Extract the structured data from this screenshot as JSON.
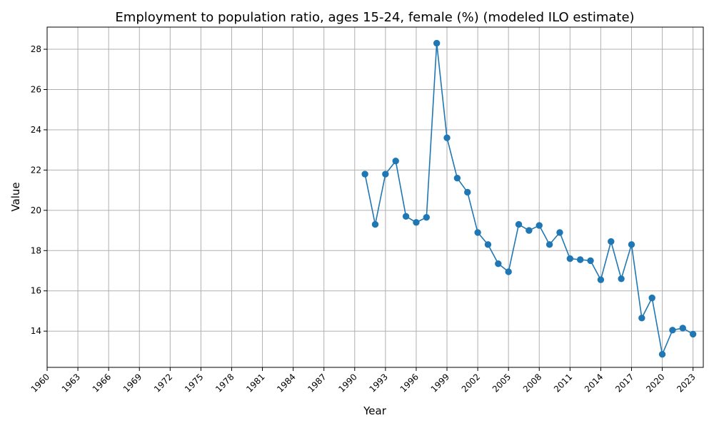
{
  "chart_data": {
    "type": "line",
    "title": "Employment to population ratio, ages 15-24, female (%) (modeled ILO estimate)",
    "xlabel": "Year",
    "ylabel": "Value",
    "xlim": [
      1960,
      2024
    ],
    "ylim": [
      12.2,
      29.1
    ],
    "xticks": [
      1960,
      1963,
      1966,
      1969,
      1972,
      1975,
      1978,
      1981,
      1984,
      1987,
      1990,
      1993,
      1996,
      1999,
      2002,
      2005,
      2008,
      2011,
      2014,
      2017,
      2020,
      2023
    ],
    "yticks": [
      14,
      16,
      18,
      20,
      22,
      24,
      26,
      28
    ],
    "grid": true,
    "series": [
      {
        "color": "#1f77b4",
        "x": [
          1991,
          1992,
          1993,
          1994,
          1995,
          1996,
          1997,
          1998,
          1999,
          2000,
          2001,
          2002,
          2003,
          2004,
          2005,
          2006,
          2007,
          2008,
          2009,
          2010,
          2011,
          2012,
          2013,
          2014,
          2015,
          2016,
          2017,
          2018,
          2019,
          2020,
          2021,
          2022,
          2023
        ],
        "y": [
          21.8,
          19.3,
          21.8,
          22.45,
          19.7,
          19.4,
          19.65,
          28.3,
          23.6,
          21.6,
          20.9,
          18.9,
          18.3,
          17.35,
          16.95,
          19.3,
          19.0,
          19.25,
          18.3,
          18.9,
          17.6,
          17.55,
          17.5,
          16.55,
          18.45,
          16.6,
          18.3,
          14.65,
          15.65,
          12.85,
          14.05,
          14.15,
          13.85
        ]
      }
    ]
  }
}
